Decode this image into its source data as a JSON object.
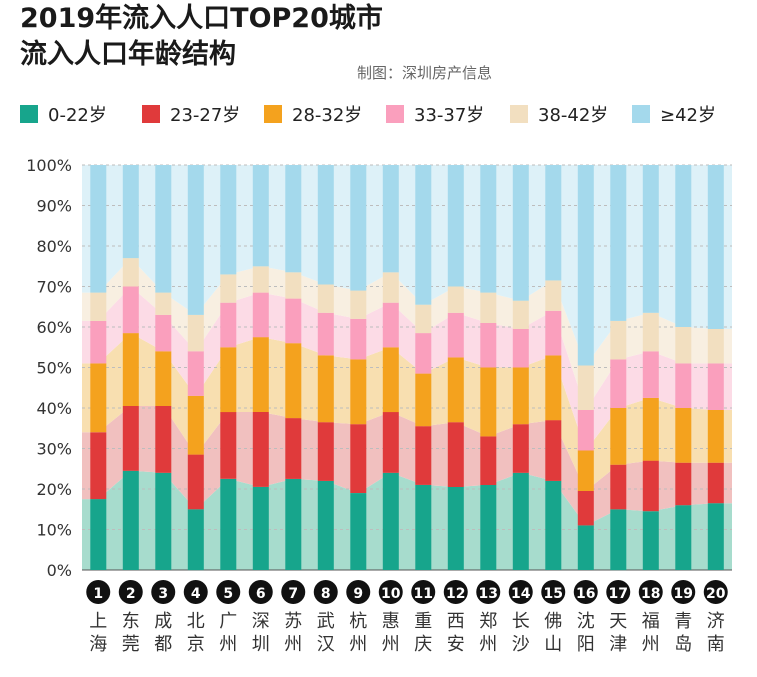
{
  "header": {
    "title_line1": "2019年流入人口TOP20城市",
    "title_line2": "流入人口年龄结构",
    "credit": "制图：深圳房产信息"
  },
  "colors": {
    "c1": "#17a58c",
    "c1_light": "#a7dccd",
    "c2": "#e03a3b",
    "c2_light": "#f1c0bf",
    "c3": "#f4a21e",
    "c3_light": "#f8dfb0",
    "c4": "#fa9fbd",
    "c4_light": "#fcdbe6",
    "c5": "#f2dfc0",
    "c5_light": "#f8efe1",
    "c6": "#a4d9ec",
    "c6_light": "#ddf1f8",
    "badge": "#111111"
  },
  "chart_data": {
    "type": "stacked-bar",
    "title": "2019年流入人口TOP20城市 流入人口年龄结构",
    "categories": [
      "上海",
      "东莞",
      "成都",
      "北京",
      "广州",
      "深圳",
      "苏州",
      "武汉",
      "杭州",
      "惠州",
      "重庆",
      "西安",
      "郑州",
      "长沙",
      "佛山",
      "沈阳",
      "天津",
      "福州",
      "青岛",
      "济南"
    ],
    "ranks": [
      "1",
      "2",
      "3",
      "4",
      "5",
      "6",
      "7",
      "8",
      "9",
      "10",
      "11",
      "12",
      "13",
      "14",
      "15",
      "16",
      "17",
      "18",
      "19",
      "20"
    ],
    "y_ticks": [
      "0%",
      "10%",
      "20%",
      "30%",
      "40%",
      "50%",
      "60%",
      "70%",
      "80%",
      "90%",
      "100%"
    ],
    "ylim": [
      0,
      100
    ],
    "series": [
      {
        "name": "0-22岁",
        "values": [
          17.5,
          24.5,
          24,
          15,
          22.5,
          20.5,
          22.5,
          22,
          19,
          24,
          21,
          20.5,
          21,
          24,
          22,
          11,
          15,
          14.5,
          16,
          16.5
        ]
      },
      {
        "name": "23-27岁",
        "values": [
          16.5,
          16,
          16.5,
          13.5,
          16.5,
          18.5,
          15,
          14.5,
          17,
          15,
          14.5,
          16,
          12,
          12,
          15,
          8.5,
          11,
          12.5,
          10.5,
          10
        ]
      },
      {
        "name": "28-32岁",
        "values": [
          17,
          18,
          13.5,
          14.5,
          16,
          18.5,
          18.5,
          16.5,
          16,
          16,
          13,
          16,
          17,
          14,
          16,
          10,
          14,
          15.5,
          13.5,
          13
        ]
      },
      {
        "name": "33-37岁",
        "values": [
          10.5,
          11.5,
          9,
          11,
          11,
          11,
          11,
          10.5,
          10,
          11,
          10,
          11,
          11,
          9.5,
          11,
          10,
          12,
          11.5,
          11,
          11.5
        ]
      },
      {
        "name": "38-42岁",
        "values": [
          7,
          7,
          5.5,
          9,
          7,
          6.5,
          6.5,
          7,
          7,
          7.5,
          7,
          6.5,
          7.5,
          7,
          7.5,
          11,
          9.5,
          9.5,
          9,
          8.5
        ]
      },
      {
        "name": "≥42岁",
        "values": [
          31.5,
          23,
          31.5,
          37,
          27,
          25,
          26.5,
          29.5,
          31,
          26.5,
          34.5,
          30,
          31.5,
          33.5,
          28.5,
          49.5,
          38.5,
          36.5,
          40,
          40.5
        ]
      }
    ]
  }
}
